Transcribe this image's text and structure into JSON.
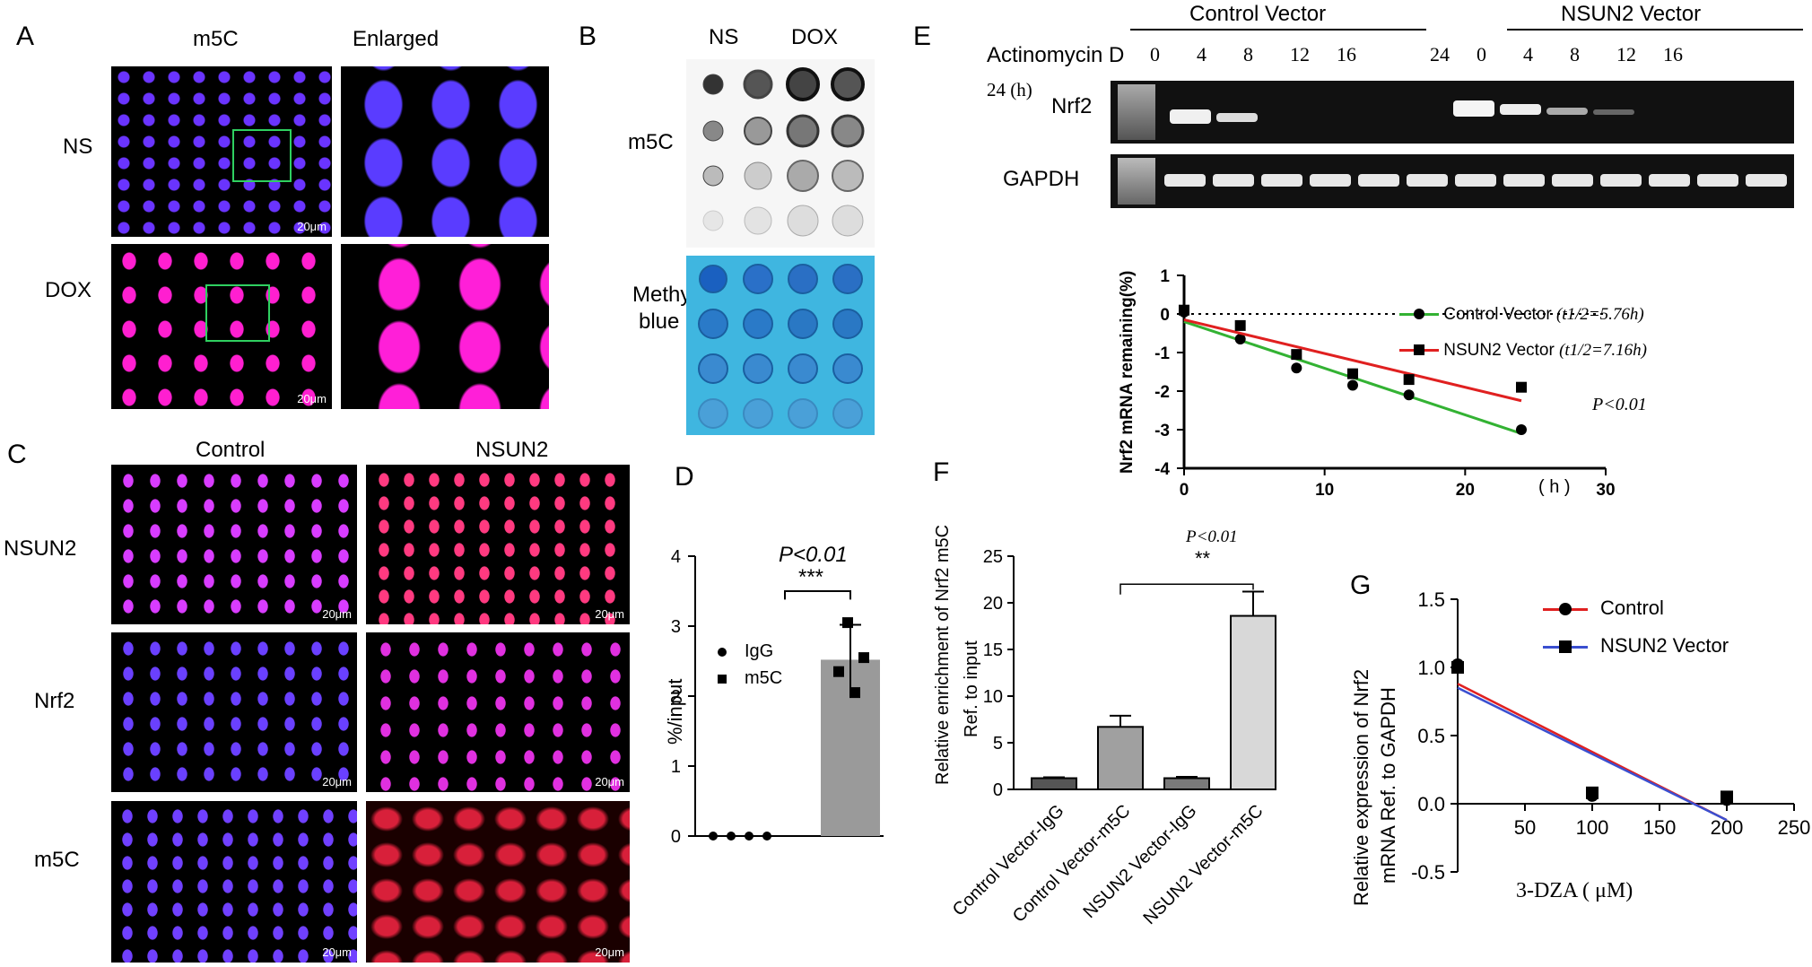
{
  "panelA": {
    "label": "A",
    "col_m5c": "m5C",
    "col_enlarged": "Enlarged",
    "row_ns": "NS",
    "row_dox": "DOX",
    "scale": "20μm"
  },
  "panelB": {
    "label": "B",
    "col_ns": "NS",
    "col_dox": "DOX",
    "row_m5c": "m5C",
    "row_methy_1": "Methy",
    "row_methy_2": "blue"
  },
  "panelC": {
    "label": "C",
    "col_control": "Control",
    "col_nsun2": "NSUN2",
    "row_nsun2": "NSUN2",
    "row_nrf2": "Nrf2",
    "row_m5c": "m5C",
    "scale": "20μm"
  },
  "panelE": {
    "label": "E",
    "group_control": "Control Vector",
    "group_nsun2": "NSUN2 Vector",
    "actinomycin": "Actinomycin D",
    "lane_labels_control": [
      "0",
      "4",
      "8",
      "12",
      "16"
    ],
    "lane_labels_nsun2": [
      "24",
      "0",
      "4",
      "8",
      "12",
      "16"
    ],
    "lane_24h": "24 (h)",
    "band_nrf2": "Nrf2",
    "band_gapdh": "GAPDH"
  },
  "chart_E": {
    "type": "scatter",
    "ylabel": "Nrf2 mRNA remaining(%)",
    "xlabel_unit": "(  h  )",
    "xlim": [
      0,
      30
    ],
    "ylim": [
      -4,
      1
    ],
    "xticks": [
      "0",
      "10",
      "20",
      "30"
    ],
    "yticks": [
      "1",
      "0",
      "-1",
      "-2",
      "-3",
      "-4"
    ],
    "series": [
      {
        "name": "Control Vector",
        "note": "(t1/2=5.76h)",
        "color": "#33b233",
        "x": [
          0,
          4,
          8,
          12,
          16,
          24
        ],
        "y": [
          0.05,
          -0.65,
          -1.4,
          -1.85,
          -2.1,
          -3.0
        ],
        "fit": [
          [
            0,
            -0.2
          ],
          [
            24,
            -3.1
          ]
        ]
      },
      {
        "name": "NSUN2 Vector",
        "note": "(t1/2=7.16h)",
        "color": "#e02020",
        "x": [
          0,
          4,
          8,
          12,
          16,
          24
        ],
        "y": [
          0.1,
          -0.3,
          -1.05,
          -1.55,
          -1.7,
          -1.9
        ],
        "fit": [
          [
            0,
            -0.15
          ],
          [
            24,
            -2.25
          ]
        ]
      }
    ],
    "annotation": "P<0.01"
  },
  "chart_D": {
    "label": "D",
    "type": "bar",
    "ylabel": "%/input",
    "ylim": [
      0,
      4
    ],
    "yticks": [
      "0",
      "1",
      "2",
      "3",
      "4"
    ],
    "p_text": "P<0.01",
    "stars": "***",
    "legend": [
      "IgG",
      "m5C"
    ],
    "igg_points": [
      0,
      0,
      0,
      0
    ],
    "m5c_mean": 2.52,
    "m5c_sd": 0.5,
    "m5c_points": [
      3.05,
      2.55,
      2.35,
      2.05
    ]
  },
  "chart_F": {
    "label": "F",
    "type": "bar",
    "ylabel_1": "Relative enrichment of Nrf2 m5C",
    "ylabel_2": "Ref. to input",
    "ylim": [
      0,
      25
    ],
    "yticks": [
      "0",
      "5",
      "10",
      "15",
      "20",
      "25"
    ],
    "categories": [
      "Control Vector-IgG",
      "Control Vector-m5C",
      "NSUN2 Vector-IgG",
      "NSUN2 Vector-m5C"
    ],
    "values": [
      1.2,
      6.7,
      1.2,
      18.6
    ],
    "errors": [
      0.1,
      1.2,
      0.15,
      2.6
    ],
    "colors": [
      "#555555",
      "#a0a0a0",
      "#7a7a7a",
      "#d8d8d8"
    ],
    "p_text": "P<0.01",
    "stars": "**"
  },
  "chart_G": {
    "label": "G",
    "type": "line",
    "ylabel_1": "Relative expression of Nrf2",
    "ylabel_2": "mRNA Ref. to GAPDH",
    "xlabel": "3-DZA ( μM)",
    "xlim": [
      0,
      250
    ],
    "ylim": [
      -0.5,
      1.5
    ],
    "xticks": [
      "50",
      "100",
      "150",
      "200",
      "250"
    ],
    "yticks": [
      "1.5",
      "1.0",
      "0.5",
      "0.0",
      "-0.5"
    ],
    "series": [
      {
        "name": "Control",
        "color": "#e02020",
        "x": [
          0,
          100,
          200
        ],
        "y": [
          1.02,
          0.06,
          0.03
        ],
        "fit": [
          [
            0,
            0.88
          ],
          [
            200,
            -0.12
          ]
        ]
      },
      {
        "name": "NSUN2 Vector",
        "color": "#3a4fd0",
        "x": [
          0,
          100,
          200
        ],
        "y": [
          1.0,
          0.08,
          0.05
        ],
        "fit": [
          [
            0,
            0.85
          ],
          [
            200,
            -0.12
          ]
        ]
      }
    ]
  }
}
